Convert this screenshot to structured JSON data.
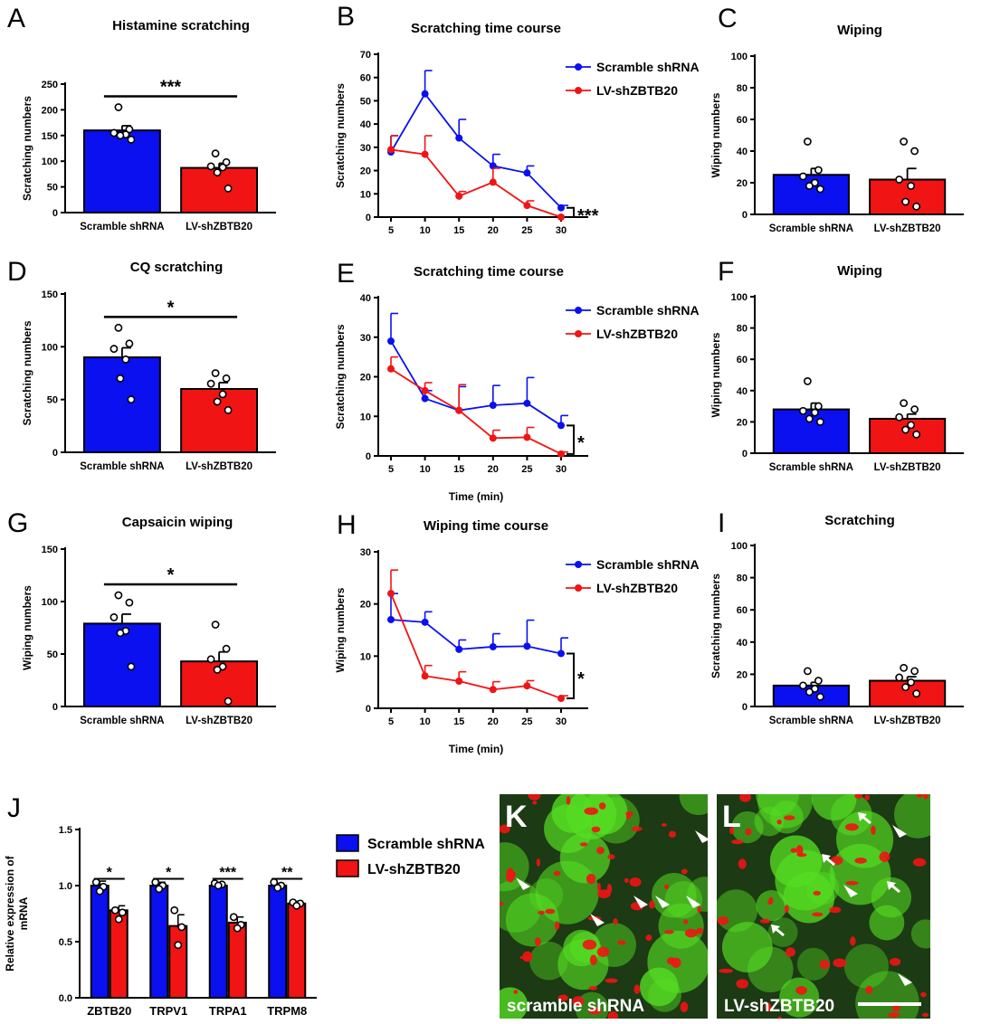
{
  "colors": {
    "blue": "#0a10f0",
    "red": "#f01414",
    "black": "#000000",
    "micro_bg": "#1c3a14",
    "green": "#55dd22",
    "white": "#ffffff"
  },
  "legend": {
    "scramble": "Scramble shRNA",
    "lv": "LV-shZBTB20"
  },
  "chart_data": [
    {
      "id": "A",
      "type": "bar",
      "title": "Histamine scratching",
      "ylabel": "Scratching numbers",
      "ylim": [
        0,
        250
      ],
      "yticks": [
        0,
        50,
        100,
        150,
        200,
        250
      ],
      "categories": [
        "Scramble shRNA",
        "LV-shZBTB20"
      ],
      "values": [
        160,
        87
      ],
      "sem": [
        9,
        9
      ],
      "points": [
        [
          205,
          162,
          155,
          152,
          150,
          142
        ],
        [
          115,
          98,
          90,
          88,
          78,
          47
        ]
      ],
      "significance": "***"
    },
    {
      "id": "B",
      "type": "line",
      "title": "Scratching time course",
      "xlabel": "",
      "ylabel": "Scratching numbers",
      "ylim": [
        0,
        70
      ],
      "yticks": [
        0,
        10,
        20,
        30,
        40,
        50,
        60,
        70
      ],
      "x": [
        5,
        10,
        15,
        20,
        25,
        30
      ],
      "series": [
        {
          "name": "Scramble shRNA",
          "values": [
            28,
            53,
            34,
            22,
            19,
            4
          ],
          "sem": [
            7,
            10,
            8,
            5,
            3,
            1
          ]
        },
        {
          "name": "LV-shZBTB20",
          "values": [
            29,
            27,
            9,
            15,
            5,
            0
          ],
          "sem": [
            6,
            8,
            2,
            6,
            2,
            0
          ]
        }
      ],
      "significance": "***"
    },
    {
      "id": "C",
      "type": "bar",
      "title": "Wiping",
      "ylabel": "Wiping numbers",
      "ylim": [
        0,
        100
      ],
      "yticks": [
        0,
        20,
        40,
        60,
        80,
        100
      ],
      "categories": [
        "Scramble shRNA",
        "LV-shZBTB20"
      ],
      "values": [
        25,
        22
      ],
      "sem": [
        4,
        7
      ],
      "points": [
        [
          46,
          28,
          24,
          20,
          18,
          16
        ],
        [
          46,
          40,
          22,
          18,
          8,
          5
        ]
      ],
      "significance": ""
    },
    {
      "id": "D",
      "type": "bar",
      "title": "CQ scratching",
      "ylabel": "Scratching numbers",
      "ylim": [
        0,
        150
      ],
      "yticks": [
        0,
        50,
        100,
        150
      ],
      "categories": [
        "Scramble shRNA",
        "LV-shZBTB20"
      ],
      "values": [
        90,
        60
      ],
      "sem": [
        9,
        6
      ],
      "points": [
        [
          118,
          103,
          98,
          88,
          70,
          50
        ],
        [
          75,
          70,
          65,
          55,
          48,
          40
        ]
      ],
      "significance": "*"
    },
    {
      "id": "E",
      "type": "line",
      "title": "Scratching time course",
      "xlabel": "Time (min)",
      "ylabel": "Scratching numbers",
      "ylim": [
        0,
        40
      ],
      "yticks": [
        0,
        10,
        20,
        30,
        40
      ],
      "x": [
        5,
        10,
        15,
        20,
        25,
        30
      ],
      "series": [
        {
          "name": "Scramble shRNA",
          "values": [
            29,
            14.5,
            11.5,
            12.8,
            13.3,
            7.7
          ],
          "sem": [
            7,
            2,
            6,
            5,
            6.5,
            2.5
          ]
        },
        {
          "name": "LV-shZBTB20",
          "values": [
            22,
            16.5,
            11.5,
            4.5,
            4.7,
            0.5
          ],
          "sem": [
            3,
            2,
            6.5,
            2,
            2.5,
            0.5
          ]
        }
      ],
      "significance": "*"
    },
    {
      "id": "F",
      "type": "bar",
      "title": "Wiping",
      "ylabel": "Wiping numbers",
      "ylim": [
        0,
        100
      ],
      "yticks": [
        0,
        20,
        40,
        60,
        80,
        100
      ],
      "categories": [
        "Scramble shRNA",
        "LV-shZBTB20"
      ],
      "values": [
        28,
        22
      ],
      "sem": [
        4,
        3
      ],
      "points": [
        [
          46,
          30,
          27,
          26,
          22,
          20
        ],
        [
          32,
          28,
          23,
          18,
          15,
          12
        ]
      ],
      "significance": ""
    },
    {
      "id": "G",
      "type": "bar",
      "title": "Capsaicin wiping",
      "ylabel": "Wiping numbers",
      "ylim": [
        0,
        150
      ],
      "yticks": [
        0,
        50,
        100,
        150
      ],
      "categories": [
        "Scramble shRNA",
        "LV-shZBTB20"
      ],
      "values": [
        79,
        43
      ],
      "sem": [
        9,
        9
      ],
      "points": [
        [
          106,
          99,
          85,
          72,
          70,
          38
        ],
        [
          78,
          55,
          45,
          38,
          35,
          5
        ]
      ],
      "significance": "*"
    },
    {
      "id": "H",
      "type": "line",
      "title": "Wiping time course",
      "xlabel": "Time (min)",
      "ylabel": "Wiping numbers",
      "ylim": [
        0,
        30
      ],
      "yticks": [
        0,
        10,
        20,
        30
      ],
      "x": [
        5,
        10,
        15,
        20,
        25,
        30
      ],
      "series": [
        {
          "name": "Scramble shRNA",
          "values": [
            17,
            16.5,
            11.3,
            11.8,
            11.9,
            10.5
          ],
          "sem": [
            5,
            2,
            1.8,
            2.5,
            5,
            3
          ]
        },
        {
          "name": "LV-shZBTB20",
          "values": [
            22,
            6.2,
            5.2,
            3.6,
            4.3,
            1.9
          ],
          "sem": [
            4.5,
            2,
            1.8,
            1.5,
            1,
            0.5
          ]
        }
      ],
      "significance": "*"
    },
    {
      "id": "I",
      "type": "bar",
      "title": "Scratching",
      "ylabel": "Scratching numbers",
      "ylim": [
        0,
        100
      ],
      "yticks": [
        0,
        20,
        40,
        60,
        80,
        100
      ],
      "categories": [
        "Scramble shRNA",
        "LV-shZBTB20"
      ],
      "values": [
        13,
        16
      ],
      "sem": [
        2,
        2.5
      ],
      "points": [
        [
          22,
          16,
          13,
          11,
          9,
          6
        ],
        [
          24,
          22,
          18,
          15,
          12,
          8
        ]
      ],
      "significance": ""
    },
    {
      "id": "J",
      "type": "bar",
      "title": "",
      "ylabel": "Relative expression of mRNA",
      "ylim": [
        0,
        1.5
      ],
      "yticks": [
        "0.0",
        "0.5",
        "1.0",
        "1.5"
      ],
      "categories": [
        "ZBTB20",
        "TRPV1",
        "TRPA1",
        "TRPM8"
      ],
      "series": [
        {
          "name": "Scramble shRNA",
          "values": [
            1.0,
            1.0,
            1.0,
            1.0
          ],
          "sem": [
            0.04,
            0.03,
            0.02,
            0.02
          ]
        },
        {
          "name": "LV-shZBTB20",
          "values": [
            0.78,
            0.64,
            0.67,
            0.84
          ],
          "sem": [
            0.04,
            0.1,
            0.05,
            0.02
          ]
        }
      ],
      "points": [
        [
          [
            1.03,
            0.99,
            0.95
          ],
          [
            0.78,
            0.76,
            0.7
          ]
        ],
        [
          [
            1.03,
            1.0,
            0.97
          ],
          [
            0.78,
            0.63,
            0.47
          ]
        ],
        [
          [
            1.02,
            1.01,
            1.0
          ],
          [
            0.72,
            0.65,
            0.62
          ]
        ],
        [
          [
            1.03,
            1.0,
            0.98
          ],
          [
            0.85,
            0.84,
            0.82
          ]
        ]
      ],
      "significance": [
        "*",
        "*",
        "***",
        "**"
      ]
    }
  ],
  "micrographs": [
    {
      "id": "K",
      "label": "scramble shRNA"
    },
    {
      "id": "L",
      "label": "LV-shZBTB20"
    }
  ]
}
